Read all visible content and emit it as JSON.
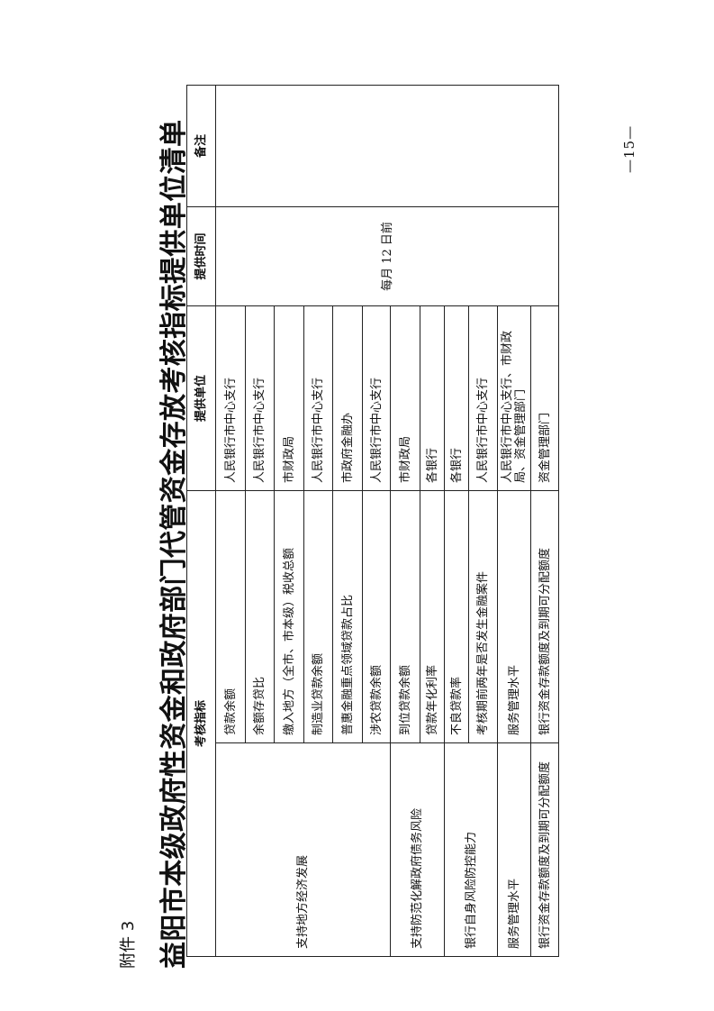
{
  "annex_label": "附件 3",
  "title": "益阳市本级政府性资金和政府部门代管资金存放考核指标提供单位清单",
  "page_number": "—15—",
  "table": {
    "headers": {
      "indicator": "考核指标",
      "provider": "提供单位",
      "time": "提供时间",
      "remark": "备注"
    },
    "provide_time": "每月 12 日前",
    "remark": "",
    "categories": [
      "支持地方经济发展",
      "支持防范化解政府债务风险",
      "银行自身风险防控能力",
      "服务管理水平",
      "银行资金存款额度及到期可分配额度"
    ],
    "rows": [
      {
        "indicator": "贷款余额",
        "provider": "人民银行市中心支行"
      },
      {
        "indicator": "余额存贷比",
        "provider": "人民银行市中心支行"
      },
      {
        "indicator": "缴入地方（全市、市本级）税收总额",
        "provider": "市财政局"
      },
      {
        "indicator": "制造业贷款余额",
        "provider": "人民银行市中心支行"
      },
      {
        "indicator": "普惠金融重点领域贷款占比",
        "provider": "市政府金融办"
      },
      {
        "indicator": "涉农贷款余额",
        "provider": "人民银行市中心支行"
      },
      {
        "indicator": "到位贷款余额",
        "provider": "市财政局"
      },
      {
        "indicator": "贷款年化利率",
        "provider": "各银行"
      },
      {
        "indicator": "不良贷款率",
        "provider": "各银行"
      },
      {
        "indicator": "考核期前两年是否发生金融案件",
        "provider": "人民银行市中心支行"
      },
      {
        "indicator": "服务管理水平",
        "provider": "人民银行市中心支行、市财政局、资金管理部门"
      },
      {
        "indicator": "银行资金存款额度及到期可分配额度",
        "provider": "资金管理部门"
      }
    ]
  }
}
